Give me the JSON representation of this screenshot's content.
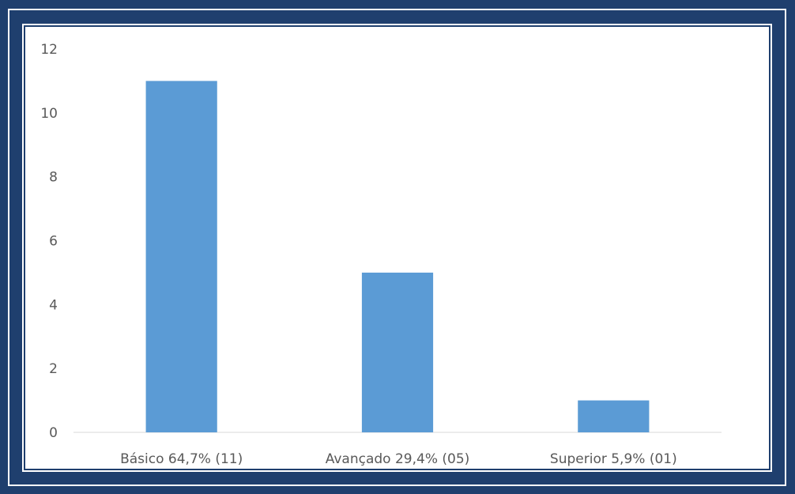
{
  "chart_data": {
    "type": "bar",
    "categories": [
      "Básico 64,7% (11)",
      "Avançado 29,4% (05)",
      "Superior 5,9% (01)"
    ],
    "values": [
      11,
      5,
      1
    ],
    "ylim": [
      0,
      12
    ],
    "yticks": [
      0,
      2,
      4,
      6,
      8,
      10,
      12
    ],
    "grid": false,
    "legend": "none",
    "bar_color": "#5b9bd5",
    "frame_color": "#1f3f6e"
  }
}
